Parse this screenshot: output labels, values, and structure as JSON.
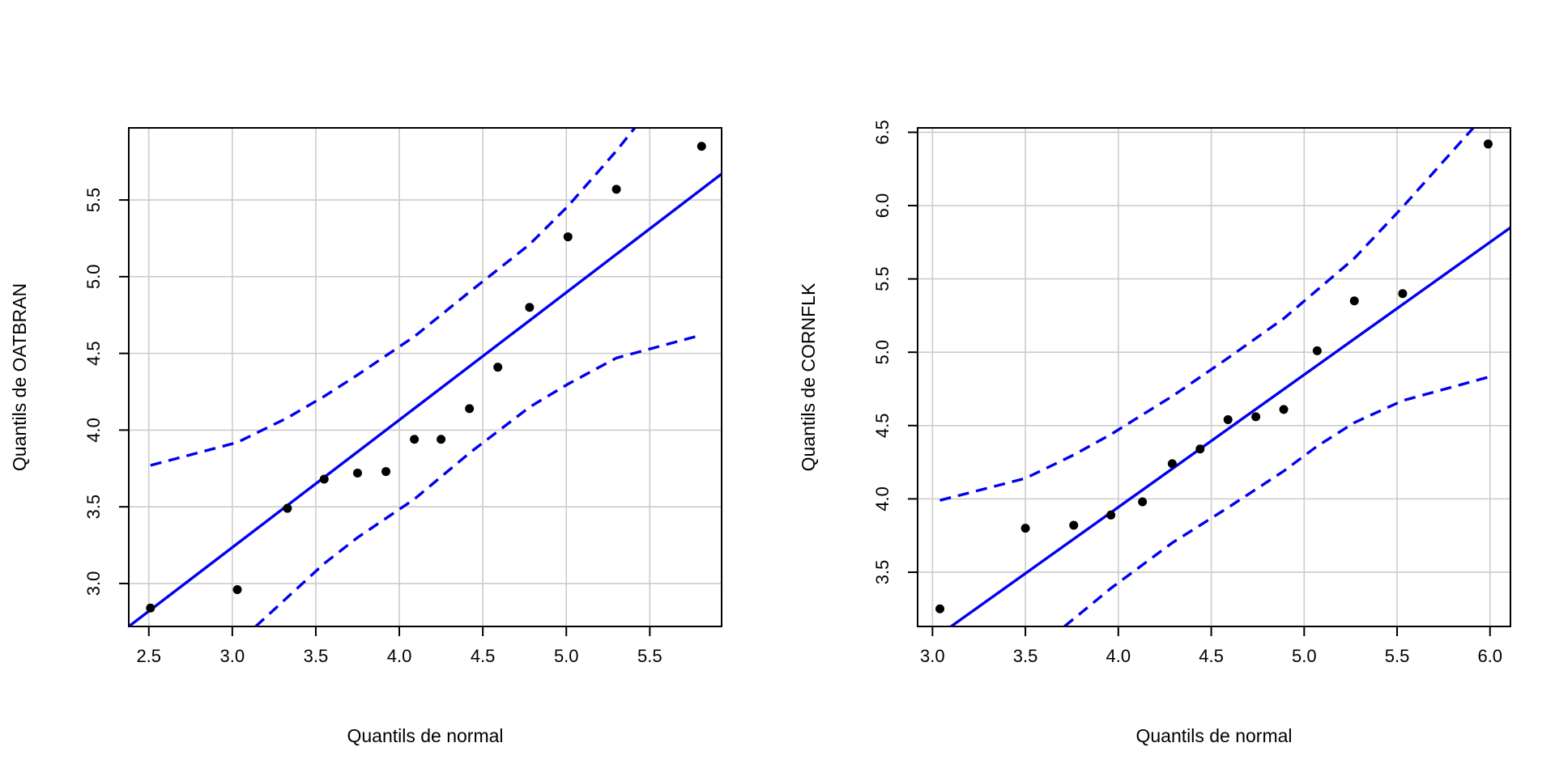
{
  "colors": {
    "line": "#0000ee",
    "points": "#000000",
    "grid": "#cccccc",
    "frame": "#000000",
    "background": "#ffffff"
  },
  "chart_data": [
    {
      "type": "scatter",
      "title": "",
      "xlabel": "Quantils de normal",
      "ylabel": "Quantils de OATBRAN",
      "xlim": [
        2.38,
        5.93
      ],
      "ylim": [
        2.72,
        5.97
      ],
      "xticks": [
        2.5,
        3.0,
        3.5,
        4.0,
        4.5,
        5.0,
        5.5
      ],
      "xtick_labels": [
        "2.5",
        "3.0",
        "3.5",
        "4.0",
        "4.5",
        "5.0",
        "5.5"
      ],
      "yticks": [
        3.0,
        3.5,
        4.0,
        4.5,
        5.0,
        5.5
      ],
      "ytick_labels": [
        "3.0",
        "3.5",
        "4.0",
        "4.5",
        "5.0",
        "5.5"
      ],
      "grid": true,
      "points": [
        {
          "x": 2.51,
          "y": 2.84
        },
        {
          "x": 3.03,
          "y": 2.96
        },
        {
          "x": 3.33,
          "y": 3.49
        },
        {
          "x": 3.55,
          "y": 3.68
        },
        {
          "x": 3.75,
          "y": 3.72
        },
        {
          "x": 3.92,
          "y": 3.73
        },
        {
          "x": 4.09,
          "y": 3.94
        },
        {
          "x": 4.25,
          "y": 3.94
        },
        {
          "x": 4.42,
          "y": 4.14
        },
        {
          "x": 4.59,
          "y": 4.41
        },
        {
          "x": 4.78,
          "y": 4.8
        },
        {
          "x": 5.01,
          "y": 5.26
        },
        {
          "x": 5.3,
          "y": 5.57
        },
        {
          "x": 5.81,
          "y": 5.85
        }
      ],
      "reference_line": [
        {
          "x": 2.38,
          "y": 2.72
        },
        {
          "x": 5.93,
          "y": 5.67
        }
      ],
      "upper_band": [
        {
          "x": 2.51,
          "y": 3.77
        },
        {
          "x": 3.03,
          "y": 3.92
        },
        {
          "x": 3.33,
          "y": 4.08
        },
        {
          "x": 3.55,
          "y": 4.22
        },
        {
          "x": 3.75,
          "y": 4.36
        },
        {
          "x": 4.09,
          "y": 4.61
        },
        {
          "x": 4.42,
          "y": 4.9
        },
        {
          "x": 4.78,
          "y": 5.21
        },
        {
          "x": 5.01,
          "y": 5.46
        },
        {
          "x": 5.3,
          "y": 5.82
        },
        {
          "x": 5.41,
          "y": 5.97
        }
      ],
      "lower_band": [
        {
          "x": 3.14,
          "y": 2.72
        },
        {
          "x": 3.33,
          "y": 2.91
        },
        {
          "x": 3.55,
          "y": 3.13
        },
        {
          "x": 3.75,
          "y": 3.3
        },
        {
          "x": 4.09,
          "y": 3.55
        },
        {
          "x": 4.42,
          "y": 3.85
        },
        {
          "x": 4.78,
          "y": 4.15
        },
        {
          "x": 5.01,
          "y": 4.3
        },
        {
          "x": 5.3,
          "y": 4.47
        },
        {
          "x": 5.81,
          "y": 4.62
        }
      ]
    },
    {
      "type": "scatter",
      "title": "",
      "xlabel": "Quantils de normal",
      "ylabel": "Quantils de CORNFLK",
      "xlim": [
        2.92,
        6.11
      ],
      "ylim": [
        3.13,
        6.53
      ],
      "xticks": [
        3.0,
        3.5,
        4.0,
        4.5,
        5.0,
        5.5,
        6.0
      ],
      "xtick_labels": [
        "3.0",
        "3.5",
        "4.0",
        "4.5",
        "5.0",
        "5.5",
        "6.0"
      ],
      "yticks": [
        3.5,
        4.0,
        4.5,
        5.0,
        5.5,
        6.0,
        6.5
      ],
      "ytick_labels": [
        "3.5",
        "4.0",
        "4.5",
        "5.0",
        "5.5",
        "6.0",
        "6.5"
      ],
      "grid": true,
      "points": [
        {
          "x": 3.04,
          "y": 3.25
        },
        {
          "x": 3.5,
          "y": 3.8
        },
        {
          "x": 3.76,
          "y": 3.82
        },
        {
          "x": 3.96,
          "y": 3.89
        },
        {
          "x": 4.13,
          "y": 3.98
        },
        {
          "x": 4.29,
          "y": 4.24
        },
        {
          "x": 4.44,
          "y": 4.34
        },
        {
          "x": 4.59,
          "y": 4.54
        },
        {
          "x": 4.74,
          "y": 4.56
        },
        {
          "x": 4.89,
          "y": 4.61
        },
        {
          "x": 5.07,
          "y": 5.01
        },
        {
          "x": 5.27,
          "y": 5.35
        },
        {
          "x": 5.53,
          "y": 5.4
        },
        {
          "x": 5.99,
          "y": 6.42
        }
      ],
      "reference_line": [
        {
          "x": 3.1,
          "y": 3.13
        },
        {
          "x": 6.11,
          "y": 5.85
        }
      ],
      "upper_band": [
        {
          "x": 3.04,
          "y": 3.99
        },
        {
          "x": 3.5,
          "y": 4.14
        },
        {
          "x": 3.76,
          "y": 4.3
        },
        {
          "x": 3.96,
          "y": 4.44
        },
        {
          "x": 4.29,
          "y": 4.7
        },
        {
          "x": 4.59,
          "y": 4.96
        },
        {
          "x": 4.89,
          "y": 5.23
        },
        {
          "x": 5.27,
          "y": 5.64
        },
        {
          "x": 5.53,
          "y": 5.99
        },
        {
          "x": 5.91,
          "y": 6.53
        }
      ],
      "lower_band": [
        {
          "x": 3.71,
          "y": 3.13
        },
        {
          "x": 3.96,
          "y": 3.39
        },
        {
          "x": 4.29,
          "y": 3.7
        },
        {
          "x": 4.59,
          "y": 3.94
        },
        {
          "x": 4.89,
          "y": 4.19
        },
        {
          "x": 5.07,
          "y": 4.36
        },
        {
          "x": 5.27,
          "y": 4.52
        },
        {
          "x": 5.53,
          "y": 4.67
        },
        {
          "x": 5.99,
          "y": 4.83
        }
      ]
    }
  ]
}
